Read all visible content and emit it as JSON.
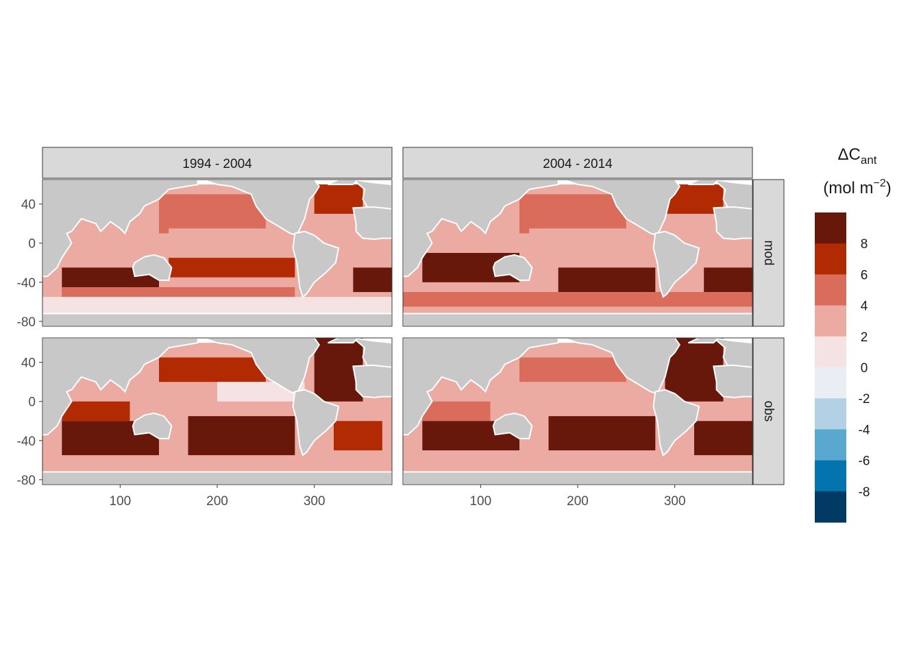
{
  "chart_data": {
    "type": "heatmap",
    "facets": {
      "columns": [
        "1994 - 2004",
        "2004 - 2014"
      ],
      "rows": [
        "mod",
        "obs"
      ]
    },
    "x_ticks": [
      "100",
      "200",
      "300"
    ],
    "x_tick_values": [
      100,
      200,
      300
    ],
    "y_ticks": [
      "40",
      "0",
      "-40",
      "-80"
    ],
    "y_tick_values": [
      40,
      0,
      -40,
      -80
    ],
    "xlim": [
      20,
      380
    ],
    "ylim": [
      -85,
      65
    ],
    "legend": {
      "title_main": "ΔC",
      "title_sub": "ant",
      "units_pre": "(mol m",
      "units_exp": "−2",
      "units_post": ")",
      "labels": [
        "8",
        "6",
        "4",
        "2",
        "0",
        "-2",
        "-4",
        "-6",
        "-8"
      ],
      "label_values": [
        8,
        6,
        4,
        2,
        0,
        -2,
        -4,
        -6,
        -8
      ],
      "bins": [
        {
          "lower": 8,
          "color": "#67180a"
        },
        {
          "lower": 6,
          "color": "#b12a02"
        },
        {
          "lower": 4,
          "color": "#d96c5a"
        },
        {
          "lower": 2,
          "color": "#ebaba3"
        },
        {
          "lower": 0,
          "color": "#f5e3e3"
        },
        {
          "lower": -2,
          "color": "#e8eef3"
        },
        {
          "lower": -4,
          "color": "#b4d0e4"
        },
        {
          "lower": -6,
          "color": "#58a8cf"
        },
        {
          "lower": -8,
          "color": "#0374ad"
        },
        {
          "lower": -10,
          "color": "#003a65"
        }
      ],
      "placement": "right"
    },
    "grid": false,
    "colors": {
      "land": "#c8c8c8",
      "missing": "#ffffff",
      "strip": "#d9d9d9"
    },
    "panels": [
      {
        "column": "1994 - 2004",
        "row": "mod",
        "zones": [
          {
            "lat_min": 30,
            "lat_max": 60,
            "lon_min": 300,
            "lon_max": 350,
            "value": 6.5
          },
          {
            "lat_min": 10,
            "lat_max": 50,
            "lon_min": 140,
            "lon_max": 250,
            "value": 5
          },
          {
            "lat_min": -15,
            "lat_max": 10,
            "lon_min": 40,
            "lon_max": 100,
            "value": 3
          },
          {
            "lat_min": -15,
            "lat_max": 15,
            "lon_min": 150,
            "lon_max": 280,
            "value": 3
          },
          {
            "lat_min": -25,
            "lat_max": 10,
            "lon_min": 320,
            "lon_max": 360,
            "value": 2.5
          },
          {
            "lat_min": -35,
            "lat_max": -15,
            "lon_min": 150,
            "lon_max": 280,
            "value": 6.5
          },
          {
            "lat_min": -50,
            "lat_max": -25,
            "lon_min": 40,
            "lon_max": 140,
            "value": 9
          },
          {
            "lat_min": -50,
            "lat_max": -25,
            "lon_min": 340,
            "lon_max": 380,
            "value": 9
          },
          {
            "lat_min": -55,
            "lat_max": -45,
            "lon_min": 40,
            "lon_max": 280,
            "value": 4
          },
          {
            "lat_min": -75,
            "lat_max": -55,
            "lon_min": 20,
            "lon_max": 380,
            "value": 1
          }
        ]
      },
      {
        "column": "2004 - 2014",
        "row": "mod",
        "zones": [
          {
            "lat_min": 30,
            "lat_max": 60,
            "lon_min": 290,
            "lon_max": 350,
            "value": 6.5
          },
          {
            "lat_min": 10,
            "lat_max": 50,
            "lon_min": 140,
            "lon_max": 250,
            "value": 5
          },
          {
            "lat_min": -10,
            "lat_max": 15,
            "lon_min": 150,
            "lon_max": 280,
            "value": 3
          },
          {
            "lat_min": -40,
            "lat_max": -10,
            "lon_min": 40,
            "lon_max": 140,
            "value": 9
          },
          {
            "lat_min": -50,
            "lat_max": -25,
            "lon_min": 180,
            "lon_max": 280,
            "value": 9
          },
          {
            "lat_min": -50,
            "lat_max": -25,
            "lon_min": 330,
            "lon_max": 380,
            "value": 9
          },
          {
            "lat_min": -65,
            "lat_max": -50,
            "lon_min": 20,
            "lon_max": 380,
            "value": 5
          },
          {
            "lat_min": -75,
            "lat_max": -65,
            "lon_min": 20,
            "lon_max": 380,
            "value": 3
          }
        ]
      },
      {
        "column": "1994 - 2004",
        "row": "obs",
        "zones": [
          {
            "lat_min": 0,
            "lat_max": 65,
            "lon_min": 300,
            "lon_max": 350,
            "value": 9
          },
          {
            "lat_min": 20,
            "lat_max": 45,
            "lon_min": 140,
            "lon_max": 250,
            "value": 6.5
          },
          {
            "lat_min": 0,
            "lat_max": 20,
            "lon_min": 200,
            "lon_max": 290,
            "value": 1
          },
          {
            "lat_min": -20,
            "lat_max": 0,
            "lon_min": 40,
            "lon_max": 110,
            "value": 6.5
          },
          {
            "lat_min": -55,
            "lat_max": -20,
            "lon_min": 40,
            "lon_max": 140,
            "value": 9
          },
          {
            "lat_min": -55,
            "lat_max": -15,
            "lon_min": 170,
            "lon_max": 280,
            "value": 9
          },
          {
            "lat_min": -50,
            "lat_max": -20,
            "lon_min": 320,
            "lon_max": 370,
            "value": 6.5
          },
          {
            "lat_min": -70,
            "lat_max": -55,
            "lon_min": 20,
            "lon_max": 380,
            "value": 3
          }
        ]
      },
      {
        "column": "2004 - 2014",
        "row": "obs",
        "zones": [
          {
            "lat_min": 0,
            "lat_max": 65,
            "lon_min": 290,
            "lon_max": 350,
            "value": 9
          },
          {
            "lat_min": 20,
            "lat_max": 45,
            "lon_min": 140,
            "lon_max": 250,
            "value": 5
          },
          {
            "lat_min": -10,
            "lat_max": 20,
            "lon_min": 150,
            "lon_max": 280,
            "value": 3
          },
          {
            "lat_min": -20,
            "lat_max": 0,
            "lon_min": 40,
            "lon_max": 110,
            "value": 5
          },
          {
            "lat_min": -50,
            "lat_max": -20,
            "lon_min": 40,
            "lon_max": 140,
            "value": 9
          },
          {
            "lat_min": -50,
            "lat_max": -15,
            "lon_min": 170,
            "lon_max": 280,
            "value": 9
          },
          {
            "lat_min": -55,
            "lat_max": -20,
            "lon_min": 320,
            "lon_max": 380,
            "value": 9
          },
          {
            "lat_min": -70,
            "lat_max": -55,
            "lon_min": 20,
            "lon_max": 380,
            "value": 3
          }
        ]
      }
    ]
  }
}
